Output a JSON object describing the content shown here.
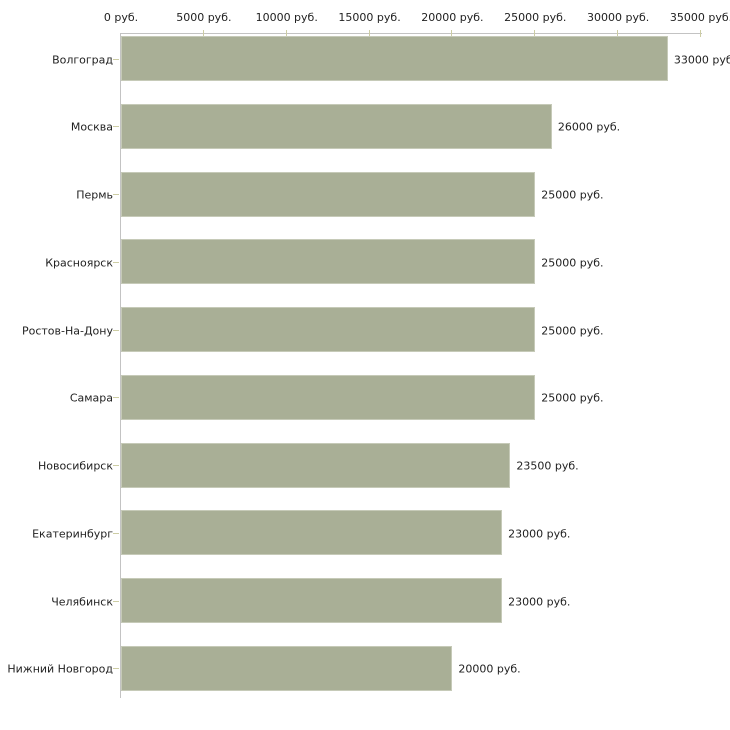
{
  "chart_data": {
    "type": "bar",
    "orientation": "horizontal",
    "categories": [
      "Волгоград",
      "Москва",
      "Пермь",
      "Красноярск",
      "Ростов-На-Дону",
      "Самара",
      "Новосибирск",
      "Екатеринбург",
      "Челябинск",
      "Нижний Новгород"
    ],
    "values": [
      33000,
      26000,
      25000,
      25000,
      25000,
      25000,
      23500,
      23000,
      23000,
      20000
    ],
    "value_labels": [
      "33000 руб",
      "26000 руб.",
      "25000 руб.",
      "25000 руб.",
      "25000 руб.",
      "25000 руб.",
      "23500 руб.",
      "23000 руб.",
      "23000 руб.",
      "20000 руб."
    ],
    "x_ticks": [
      0,
      5000,
      10000,
      15000,
      20000,
      25000,
      30000,
      35000
    ],
    "x_tick_labels": [
      "0 руб.",
      "5000 руб.",
      "10000 руб.",
      "15000 руб.",
      "20000 руб.",
      "25000 руб.",
      "30000 руб.",
      "35000 руб."
    ],
    "xlim": [
      0,
      35000
    ],
    "grid": false,
    "legend": false,
    "title": "",
    "colors": {
      "bar_fill": "#a9af96",
      "bar_border": "#c6cab8",
      "axis_line": "#c3c3c3",
      "tick": "#cdcda4",
      "text": "#222222",
      "background": "#ffffff"
    }
  }
}
